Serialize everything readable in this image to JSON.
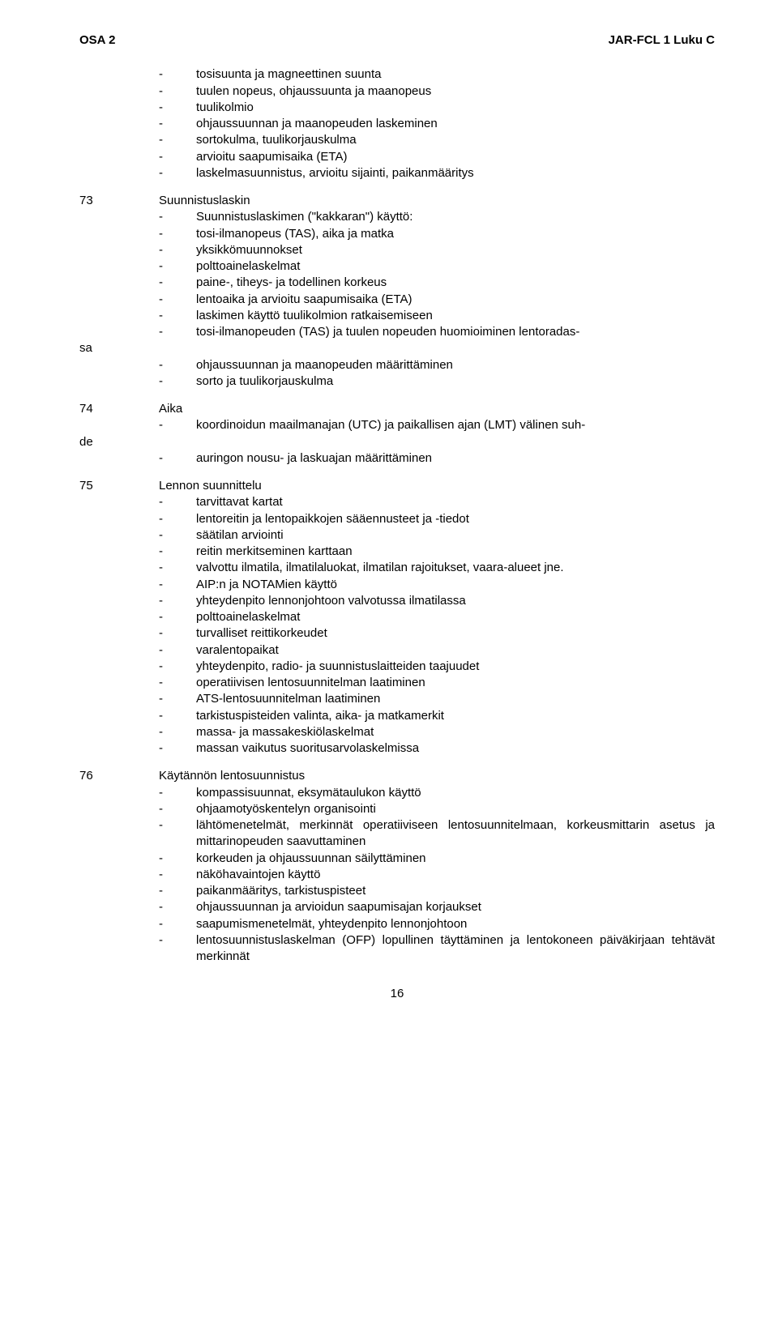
{
  "header": {
    "left": "OSA 2",
    "right": "JAR-FCL 1 Luku C"
  },
  "intro": {
    "items": [
      "tosisuunta ja magneettinen suunta",
      "tuulen nopeus, ohjaussuunta ja maanopeus",
      "tuulikolmio",
      "ohjaussuunnan ja maanopeuden laskeminen",
      "sortokulma, tuulikorjauskulma",
      "arvioitu saapumisaika (ETA)",
      "laskelmasuunnistus, arvioitu sijainti, paikanmääritys"
    ]
  },
  "s73": {
    "num": "73",
    "title": "Suunnistuslaskin",
    "items": [
      "Suunnistuslaskimen (\"kakkaran\") käyttö:",
      "tosi-ilmanopeus (TAS), aika ja matka",
      "yksikkömuunnokset",
      "polttoainelaskelmat",
      "paine-, tiheys- ja todellinen korkeus",
      "lentoaika ja arvioitu saapumisaika (ETA)",
      "laskimen käyttö tuulikolmion ratkaisemiseen"
    ],
    "wrap_prefix": "-",
    "wrap_text_a": "tosi-ilmanopeuden (TAS) ja tuulen nopeuden huomioiminen lentoradas-",
    "wrap_sa": "sa",
    "items2": [
      "ohjaussuunnan ja maanopeuden määrittäminen",
      "sorto ja tuulikorjauskulma"
    ]
  },
  "s74": {
    "num": "74",
    "title": "Aika",
    "wrap_text_a": "koordinoidun maailmanajan (UTC) ja paikallisen ajan (LMT) välinen suh-",
    "wrap_de": "de",
    "items2": [
      "auringon nousu- ja laskuajan määrittäminen"
    ]
  },
  "s75": {
    "num": "75",
    "title": "Lennon suunnittelu",
    "items": [
      "tarvittavat kartat",
      "lentoreitin ja lentopaikkojen sääennusteet ja -tiedot",
      "säätilan arviointi",
      "reitin merkitseminen karttaan",
      "valvottu ilmatila, ilmatilaluokat, ilmatilan rajoitukset, vaara-alueet jne.",
      "AIP:n ja NOTAMien käyttö",
      "yhteydenpito lennonjohtoon valvotussa ilmatilassa",
      "polttoainelaskelmat",
      "turvalliset reittikorkeudet",
      "varalentopaikat",
      "yhteydenpito, radio- ja suunnistuslaitteiden taajuudet",
      "operatiivisen lentosuunnitelman laatiminen",
      "ATS-lentosuunnitelman laatiminen",
      "tarkistuspisteiden valinta, aika- ja matkamerkit",
      "massa- ja massakeskiölaskelmat",
      "massan vaikutus suoritusarvolaskelmissa"
    ]
  },
  "s76": {
    "num": "76",
    "title": "Käytännön lentosuunnistus",
    "items": [
      "kompassisuunnat, eksymätaulukon käyttö",
      "ohjaamotyöskentelyn organisointi",
      "lähtömenetelmät, merkinnät operatiiviseen lentosuunnitelmaan, korkeusmittarin asetus ja mittarinopeuden saavuttaminen",
      "korkeuden ja ohjaussuunnan säilyttäminen",
      "näköhavaintojen käyttö",
      "paikanmääritys, tarkistuspisteet",
      "ohjaussuunnan ja arvioidun saapumisajan korjaukset",
      "saapumismenetelmät, yhteydenpito lennonjohtoon",
      "lentosuunnistuslaskelman (OFP) lopullinen täyttäminen ja lentokoneen päiväkirjaan tehtävät merkinnät"
    ]
  },
  "page": "16"
}
